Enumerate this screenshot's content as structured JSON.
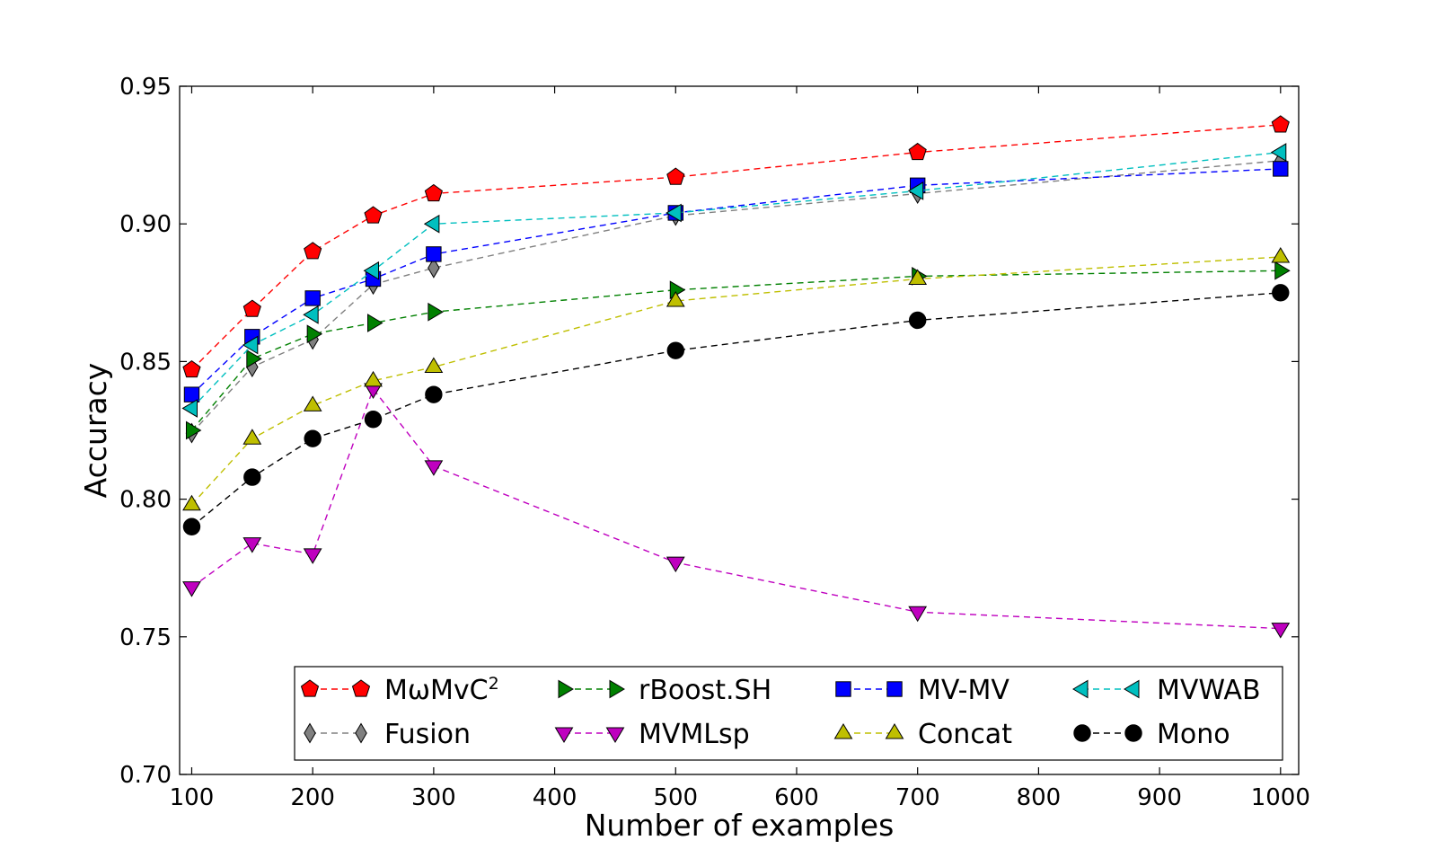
{
  "chart_data": {
    "type": "line",
    "title": "",
    "xlabel": "Number of examples",
    "ylabel": "Accuracy",
    "xlim": [
      90,
      1015
    ],
    "ylim": [
      0.7,
      0.95
    ],
    "xticks": [
      100,
      200,
      300,
      400,
      500,
      600,
      700,
      800,
      900,
      1000
    ],
    "xtick_labels": [
      "100",
      "200",
      "300",
      "400",
      "500",
      "600",
      "700",
      "800",
      "900",
      "1000"
    ],
    "yticks": [
      0.7,
      0.75,
      0.8,
      0.85,
      0.9,
      0.95
    ],
    "ytick_labels": [
      "0.70",
      "0.75",
      "0.80",
      "0.85",
      "0.90",
      "0.95"
    ],
    "grid": false,
    "legend_position": "lower-right",
    "legend_columns": 4,
    "x": [
      100,
      150,
      200,
      250,
      300,
      500,
      700,
      1000
    ],
    "series": [
      {
        "name": "MωMvC",
        "superscript": "2",
        "color": "#ff0000",
        "marker": "pentagon",
        "values": [
          0.847,
          0.869,
          0.89,
          0.903,
          0.911,
          0.917,
          0.926,
          0.936
        ]
      },
      {
        "name": "Fusion",
        "color": "#808080",
        "marker": "diamond",
        "values": [
          0.824,
          0.848,
          0.858,
          0.878,
          0.884,
          0.903,
          0.911,
          0.923
        ]
      },
      {
        "name": "rBoost.SH",
        "color": "#008000",
        "marker": "triangle-right",
        "values": [
          0.825,
          0.851,
          0.86,
          0.864,
          0.868,
          0.876,
          0.881,
          0.883
        ]
      },
      {
        "name": "MVMLsp",
        "color": "#bf00bf",
        "marker": "triangle-down",
        "values": [
          0.768,
          0.784,
          0.78,
          0.84,
          0.812,
          0.777,
          0.759,
          0.753
        ]
      },
      {
        "name": "MV-MV",
        "color": "#0000ff",
        "marker": "square",
        "values": [
          0.838,
          0.859,
          0.873,
          0.88,
          0.889,
          0.904,
          0.914,
          0.92
        ]
      },
      {
        "name": "Concat",
        "color": "#bfbf00",
        "marker": "triangle-up",
        "values": [
          0.798,
          0.822,
          0.834,
          0.843,
          0.848,
          0.872,
          0.88,
          0.888
        ]
      },
      {
        "name": "MVWAB",
        "color": "#00bfbf",
        "marker": "triangle-left",
        "values": [
          0.833,
          0.856,
          0.867,
          0.883,
          0.9,
          0.904,
          0.912,
          0.926
        ]
      },
      {
        "name": "Mono",
        "color": "#000000",
        "marker": "circle",
        "values": [
          0.79,
          0.808,
          0.822,
          0.829,
          0.838,
          0.854,
          0.865,
          0.875
        ]
      }
    ],
    "legend_order": [
      "MωMvC",
      "rBoost.SH",
      "MV-MV",
      "MVWAB",
      "Fusion",
      "MVMLsp",
      "Concat",
      "Mono"
    ]
  }
}
